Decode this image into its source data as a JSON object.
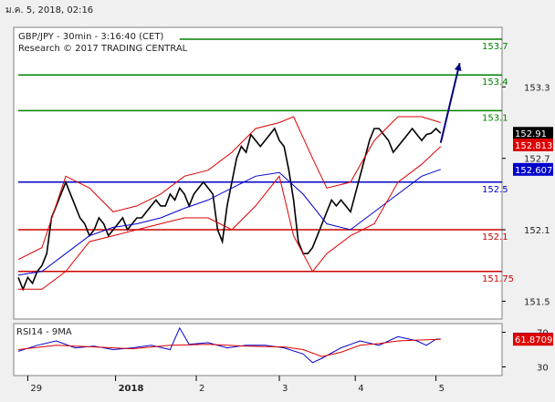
{
  "header": {
    "timestamp": "ม.ค. 5, 2018, 02:16"
  },
  "chart_data": [
    {
      "type": "line",
      "title": "GBP/JPY - 30min - 3:16:40 (CET)",
      "subtitle": "Research © 2017 TRADING CENTRAL",
      "ylim": [
        151.35,
        153.8
      ],
      "y_ticks": [
        151.5,
        152.1,
        152.7,
        153.3
      ],
      "y_tick_labels": [
        "151.5",
        "152.1",
        "152.7",
        "153.3"
      ],
      "x_range": [
        0,
        100
      ],
      "x_ticks": [
        {
          "x": 2,
          "label": "29"
        },
        {
          "x": 20.5,
          "label": "2018"
        },
        {
          "x": 37.5,
          "label": "2"
        },
        {
          "x": 55,
          "label": "3"
        },
        {
          "x": 71,
          "label": "4"
        },
        {
          "x": 88,
          "label": "5"
        }
      ],
      "levels": [
        {
          "value": 153.7,
          "label": "153.7",
          "color": "#008000",
          "xstart": 34
        },
        {
          "value": 153.4,
          "label": "153.4",
          "color": "#008000",
          "xstart": 0
        },
        {
          "value": 153.1,
          "label": "153.1",
          "color": "#008000",
          "xstart": 0
        },
        {
          "value": 152.5,
          "label": "152.5",
          "color": "#0000cc",
          "xstart": 0
        },
        {
          "value": 152.1,
          "label": "152.1",
          "color": "#cc0000",
          "xstart": 0
        },
        {
          "value": 151.75,
          "label": "151.75",
          "color": "#cc0000",
          "xstart": 0
        }
      ],
      "price_tags": [
        {
          "value": 152.91,
          "label": "152.91",
          "bg": "#000000",
          "fg": "#ffffff"
        },
        {
          "value": 152.813,
          "label": "152.813",
          "bg": "#dd0000",
          "fg": "#ffffff"
        },
        {
          "value": 152.607,
          "label": "152.607",
          "bg": "#0000cc",
          "fg": "#ffffff"
        }
      ],
      "projection": {
        "x": [
          89,
          93
        ],
        "y": [
          152.83,
          153.5
        ],
        "color": "#000080"
      },
      "series": [
        {
          "name": "Price",
          "color": "#000000",
          "x": [
            0,
            1,
            2,
            3,
            4,
            5,
            6,
            7,
            8,
            9,
            10,
            11,
            12,
            13,
            14,
            15,
            16,
            17,
            18,
            19,
            20,
            21,
            22,
            23,
            24,
            25,
            26,
            27,
            28,
            29,
            30,
            31,
            32,
            33,
            34,
            35,
            36,
            37,
            38,
            39,
            40,
            41,
            42,
            43,
            44,
            45,
            46,
            47,
            48,
            49,
            50,
            51,
            52,
            53,
            54,
            55,
            56,
            57,
            58,
            59,
            60,
            61,
            62,
            63,
            64,
            65,
            66,
            67,
            68,
            69,
            70,
            71,
            72,
            73,
            74,
            75,
            76,
            77,
            78,
            79,
            80,
            81,
            82,
            83,
            84,
            85,
            86,
            87,
            88,
            89
          ],
          "y": [
            151.7,
            151.6,
            151.7,
            151.65,
            151.75,
            151.8,
            151.9,
            152.2,
            152.3,
            152.4,
            152.5,
            152.4,
            152.3,
            152.2,
            152.15,
            152.05,
            152.1,
            152.2,
            152.15,
            152.05,
            152.1,
            152.15,
            152.2,
            152.1,
            152.15,
            152.2,
            152.2,
            152.25,
            152.3,
            152.35,
            152.3,
            152.3,
            152.4,
            152.35,
            152.45,
            152.4,
            152.3,
            152.4,
            152.45,
            152.5,
            152.45,
            152.4,
            152.1,
            152.0,
            152.3,
            152.5,
            152.7,
            152.8,
            152.75,
            152.9,
            152.85,
            152.8,
            152.85,
            152.9,
            152.95,
            152.85,
            152.8,
            152.6,
            152.35,
            152.0,
            151.9,
            151.9,
            151.95,
            152.05,
            152.15,
            152.25,
            152.35,
            152.3,
            152.35,
            152.3,
            152.25,
            152.4,
            152.55,
            152.7,
            152.85,
            152.95,
            152.95,
            152.9,
            152.85,
            152.75,
            152.8,
            152.85,
            152.9,
            152.95,
            152.9,
            152.85,
            152.9,
            152.91,
            152.95,
            152.91
          ]
        },
        {
          "name": "MA",
          "color": "#0000cc",
          "x": [
            0,
            5,
            10,
            15,
            20,
            25,
            30,
            35,
            40,
            45,
            50,
            55,
            60,
            65,
            70,
            75,
            80,
            85,
            89
          ],
          "y": [
            151.72,
            151.75,
            151.9,
            152.05,
            152.12,
            152.15,
            152.2,
            152.28,
            152.35,
            152.45,
            152.55,
            152.58,
            152.4,
            152.15,
            152.1,
            152.25,
            152.4,
            152.55,
            152.607
          ]
        },
        {
          "name": "Upper band",
          "color": "#dd0000",
          "x": [
            0,
            5,
            10,
            15,
            20,
            25,
            30,
            35,
            40,
            45,
            50,
            55,
            58,
            62,
            65,
            70,
            75,
            80,
            85,
            89
          ],
          "y": [
            151.85,
            151.95,
            152.55,
            152.45,
            152.25,
            152.3,
            152.4,
            152.55,
            152.6,
            152.75,
            152.95,
            153.0,
            153.05,
            152.7,
            152.45,
            152.5,
            152.85,
            153.05,
            153.05,
            153.0
          ]
        },
        {
          "name": "Lower band",
          "color": "#dd0000",
          "x": [
            0,
            5,
            10,
            15,
            20,
            25,
            30,
            35,
            40,
            45,
            50,
            55,
            58,
            62,
            65,
            70,
            75,
            80,
            85,
            89
          ],
          "y": [
            151.6,
            151.6,
            151.75,
            152.0,
            152.05,
            152.1,
            152.15,
            152.2,
            152.2,
            152.1,
            152.3,
            152.55,
            152.05,
            151.75,
            151.9,
            152.05,
            152.15,
            152.5,
            152.65,
            152.8
          ]
        }
      ]
    },
    {
      "type": "line",
      "title": "RSI14 - 9MA",
      "ylim": [
        20,
        80
      ],
      "y_ticks": [
        30,
        70
      ],
      "y_tick_labels": [
        "30",
        "70"
      ],
      "price_tags": [
        {
          "value": 62.1432,
          "label": "62.1432",
          "bg": "#0000cc",
          "fg": "#ffffff"
        },
        {
          "value": 61.8709,
          "label": "61.8709",
          "bg": "#dd0000",
          "fg": "#ffffff"
        }
      ],
      "series": [
        {
          "name": "RSI",
          "color": "#0000cc",
          "x": [
            0,
            4,
            8,
            12,
            16,
            20,
            24,
            28,
            32,
            34,
            36,
            40,
            44,
            48,
            52,
            56,
            60,
            62,
            64,
            68,
            72,
            76,
            80,
            84,
            86,
            88,
            89
          ],
          "y": [
            48,
            55,
            60,
            52,
            54,
            50,
            52,
            55,
            50,
            75,
            56,
            58,
            52,
            55,
            55,
            52,
            45,
            35,
            40,
            52,
            60,
            55,
            65,
            60,
            55,
            62,
            62.1432
          ]
        },
        {
          "name": "RSI MA",
          "color": "#dd0000",
          "x": [
            0,
            8,
            16,
            24,
            32,
            40,
            48,
            56,
            60,
            64,
            68,
            72,
            76,
            80,
            84,
            89
          ],
          "y": [
            50,
            55,
            53,
            51,
            55,
            56,
            54,
            53,
            50,
            42,
            47,
            55,
            57,
            60,
            61,
            61.8709
          ]
        }
      ]
    }
  ]
}
